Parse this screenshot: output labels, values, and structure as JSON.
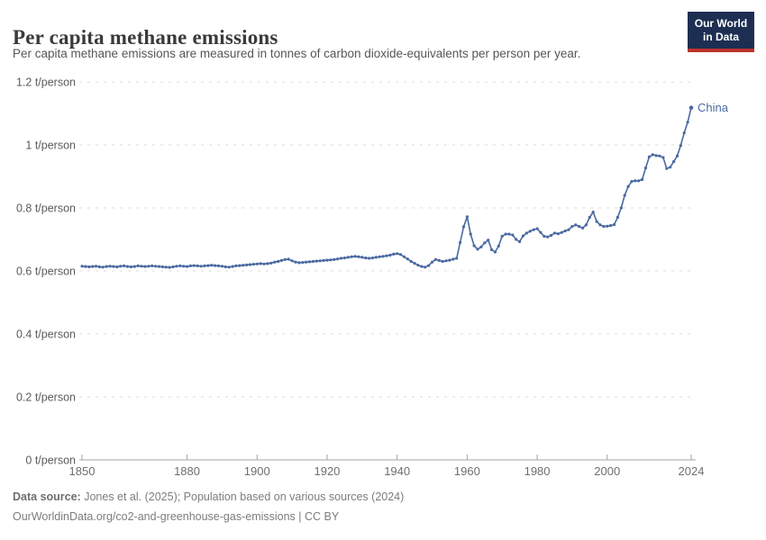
{
  "header": {
    "title": "Per capita methane emissions",
    "subtitle": "Per capita methane emissions are measured in tonnes of carbon dioxide-equivalents per person per year.",
    "logo": {
      "line1": "Our World",
      "line2": "in Data",
      "bg_color": "#1d2e52",
      "bar_color": "#bc342c"
    }
  },
  "chart_data": {
    "type": "line",
    "title": "Per capita methane emissions",
    "unit": "t/person",
    "ylim": [
      0,
      1.2
    ],
    "grid": true,
    "legend": "end-of-line label",
    "ytick_values": [
      0,
      0.2,
      0.4,
      0.6,
      0.8,
      1.0,
      1.2
    ],
    "ytick_labels": [
      "0 t/person",
      "0.2 t/person",
      "0.4 t/person",
      "0.6 t/person",
      "0.8 t/person",
      "1 t/person",
      "1.2 t/person"
    ],
    "xtick_values": [
      1850,
      1880,
      1900,
      1920,
      1940,
      1960,
      1980,
      2000,
      2024
    ],
    "xtick_labels": [
      "1850",
      "1880",
      "1900",
      "1920",
      "1940",
      "1960",
      "1980",
      "2000",
      "2024"
    ],
    "series": [
      {
        "name": "China",
        "color": "#4a69a0",
        "start_year": 1850,
        "end_year": 2024,
        "values": [
          0.615,
          0.614,
          0.613,
          0.614,
          0.615,
          0.613,
          0.612,
          0.614,
          0.615,
          0.614,
          0.613,
          0.615,
          0.616,
          0.614,
          0.613,
          0.614,
          0.616,
          0.615,
          0.614,
          0.615,
          0.616,
          0.615,
          0.614,
          0.613,
          0.612,
          0.611,
          0.613,
          0.615,
          0.616,
          0.615,
          0.614,
          0.616,
          0.617,
          0.616,
          0.615,
          0.616,
          0.617,
          0.618,
          0.617,
          0.616,
          0.615,
          0.613,
          0.612,
          0.614,
          0.616,
          0.617,
          0.618,
          0.619,
          0.62,
          0.621,
          0.622,
          0.623,
          0.622,
          0.623,
          0.625,
          0.628,
          0.63,
          0.633,
          0.636,
          0.637,
          0.632,
          0.628,
          0.626,
          0.627,
          0.628,
          0.629,
          0.63,
          0.631,
          0.632,
          0.633,
          0.634,
          0.635,
          0.636,
          0.638,
          0.64,
          0.641,
          0.643,
          0.645,
          0.646,
          0.645,
          0.643,
          0.641,
          0.64,
          0.641,
          0.643,
          0.645,
          0.646,
          0.648,
          0.65,
          0.653,
          0.655,
          0.652,
          0.645,
          0.638,
          0.63,
          0.624,
          0.618,
          0.614,
          0.612,
          0.617,
          0.628,
          0.636,
          0.633,
          0.63,
          0.632,
          0.634,
          0.637,
          0.64,
          0.69,
          0.74,
          0.772,
          0.717,
          0.68,
          0.669,
          0.676,
          0.689,
          0.698,
          0.667,
          0.66,
          0.679,
          0.71,
          0.717,
          0.717,
          0.714,
          0.7,
          0.693,
          0.711,
          0.72,
          0.726,
          0.731,
          0.734,
          0.722,
          0.71,
          0.708,
          0.713,
          0.72,
          0.718,
          0.722,
          0.727,
          0.731,
          0.741,
          0.746,
          0.741,
          0.736,
          0.746,
          0.77,
          0.787,
          0.757,
          0.746,
          0.741,
          0.742,
          0.744,
          0.747,
          0.77,
          0.8,
          0.84,
          0.868,
          0.884,
          0.886,
          0.886,
          0.89,
          0.927,
          0.962,
          0.969,
          0.966,
          0.965,
          0.96,
          0.925,
          0.929,
          0.947,
          0.965,
          0.998,
          1.038,
          1.072,
          1.118
        ]
      }
    ]
  },
  "footer": {
    "source_label": "Data source:",
    "source_text": " Jones et al. (2025); Population based on various sources (2024)",
    "link_text": "OurWorldinData.org/co2-and-greenhouse-gas-emissions | CC BY"
  }
}
